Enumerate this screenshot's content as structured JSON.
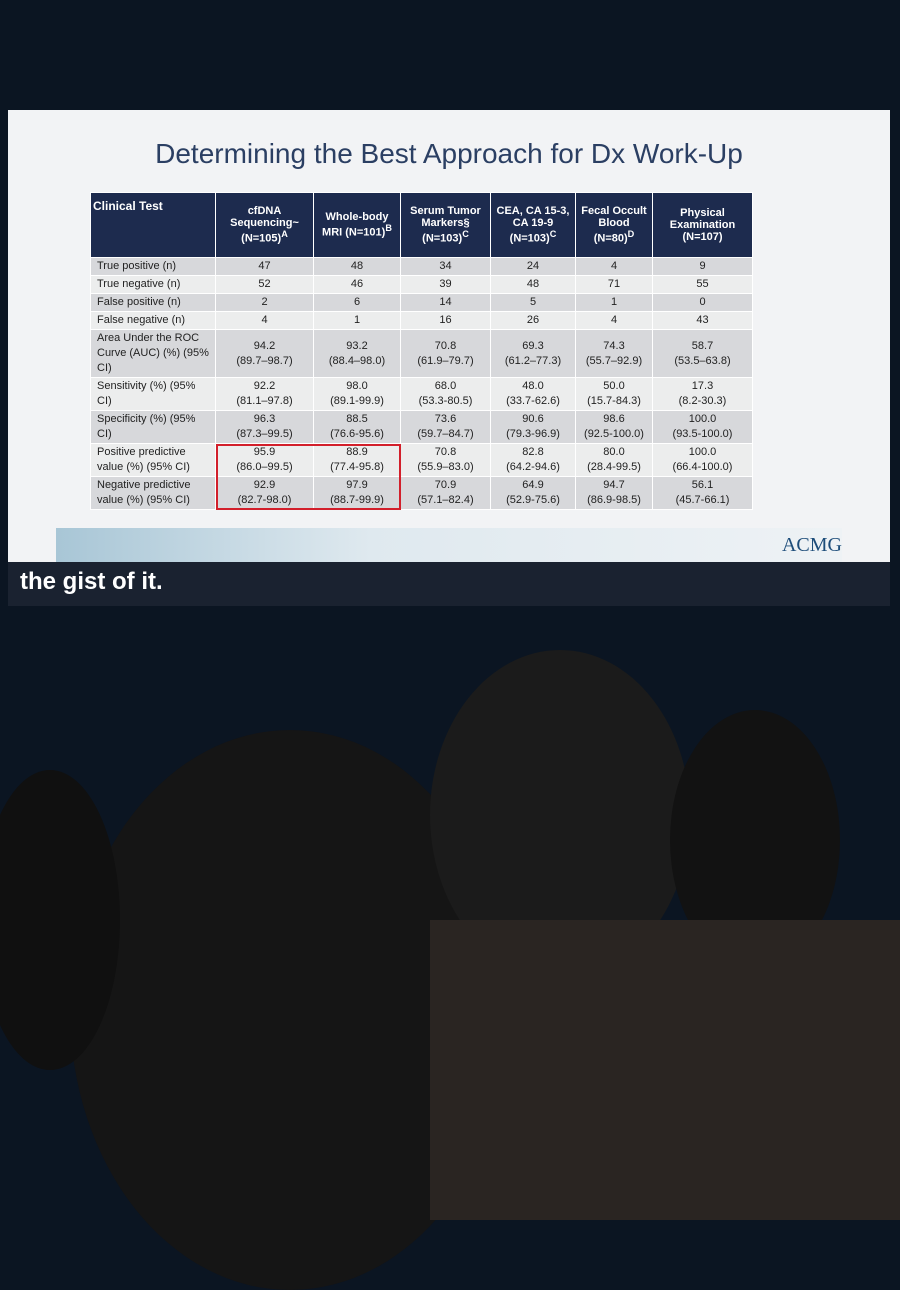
{
  "slide": {
    "title": "Determining the Best Approach for Dx Work-Up",
    "logo": "ACMG"
  },
  "table": {
    "header": [
      {
        "label": "Clinical Test"
      },
      {
        "label": "cfDNA Sequencing~ (N=105)",
        "sup": "A"
      },
      {
        "label": "Whole-body MRI (N=101)",
        "sup": "B"
      },
      {
        "label": "Serum Tumor Markers§ (N=103)",
        "sup": "C"
      },
      {
        "label": "CEA, CA 15-3, CA 19-9 (N=103)",
        "sup": "C"
      },
      {
        "label": "Fecal Occult Blood (N=80)",
        "sup": "D"
      },
      {
        "label": "Physical Examination (N=107)"
      }
    ],
    "rows": [
      {
        "label": "True positive (n)",
        "cells": [
          [
            "47"
          ],
          [
            "48"
          ],
          [
            "34"
          ],
          [
            "24"
          ],
          [
            "4"
          ],
          [
            "9"
          ]
        ]
      },
      {
        "label": "True negative (n)",
        "cells": [
          [
            "52"
          ],
          [
            "46"
          ],
          [
            "39"
          ],
          [
            "48"
          ],
          [
            "71"
          ],
          [
            "55"
          ]
        ]
      },
      {
        "label": "False positive (n)",
        "cells": [
          [
            "2"
          ],
          [
            "6"
          ],
          [
            "14"
          ],
          [
            "5"
          ],
          [
            "1"
          ],
          [
            "0"
          ]
        ]
      },
      {
        "label": "False negative (n)",
        "cells": [
          [
            "4"
          ],
          [
            "1"
          ],
          [
            "16"
          ],
          [
            "26"
          ],
          [
            "4"
          ],
          [
            "43"
          ]
        ]
      },
      {
        "label": "Area Under the ROC Curve (AUC) (%) (95% CI)",
        "cells": [
          [
            "94.2",
            "(89.7–98.7)"
          ],
          [
            "93.2",
            "(88.4–98.0)"
          ],
          [
            "70.8",
            "(61.9–79.7)"
          ],
          [
            "69.3",
            "(61.2–77.3)"
          ],
          [
            "74.3",
            "(55.7–92.9)"
          ],
          [
            "58.7",
            "(53.5–63.8)"
          ]
        ]
      },
      {
        "label": "Sensitivity (%) (95% CI)",
        "cells": [
          [
            "92.2",
            "(81.1–97.8)"
          ],
          [
            "98.0",
            "(89.1-99.9)"
          ],
          [
            "68.0",
            "(53.3-80.5)"
          ],
          [
            "48.0",
            "(33.7-62.6)"
          ],
          [
            "50.0",
            "(15.7-84.3)"
          ],
          [
            "17.3",
            "(8.2-30.3)"
          ]
        ]
      },
      {
        "label": "Specificity (%) (95% CI)",
        "cells": [
          [
            "96.3",
            "(87.3–99.5)"
          ],
          [
            "88.5",
            "(76.6-95.6)"
          ],
          [
            "73.6",
            "(59.7–84.7)"
          ],
          [
            "90.6",
            "(79.3-96.9)"
          ],
          [
            "98.6",
            "(92.5-100.0)"
          ],
          [
            "100.0",
            "(93.5-100.0)"
          ]
        ]
      },
      {
        "label": "Positive predictive value (%) (95% CI)",
        "cells": [
          [
            "95.9",
            "(86.0–99.5)"
          ],
          [
            "88.9",
            "(77.4-95.8)"
          ],
          [
            "70.8",
            "(55.9–83.0)"
          ],
          [
            "82.8",
            "(64.2-94.6)"
          ],
          [
            "80.0",
            "(28.4-99.5)"
          ],
          [
            "100.0",
            "(66.4-100.0)"
          ]
        ]
      },
      {
        "label": "Negative predictive value (%) (95% CI)",
        "cells": [
          [
            "92.9",
            "(82.7-98.0)"
          ],
          [
            "97.9",
            "(88.7-99.9)"
          ],
          [
            "70.9",
            "(57.1–82.4)"
          ],
          [
            "64.9",
            "(52.9-75.6)"
          ],
          [
            "94.7",
            "(86.9-98.5)"
          ],
          [
            "56.1",
            "(45.7-66.1)"
          ]
        ]
      }
    ]
  },
  "caption": "the gist of it."
}
